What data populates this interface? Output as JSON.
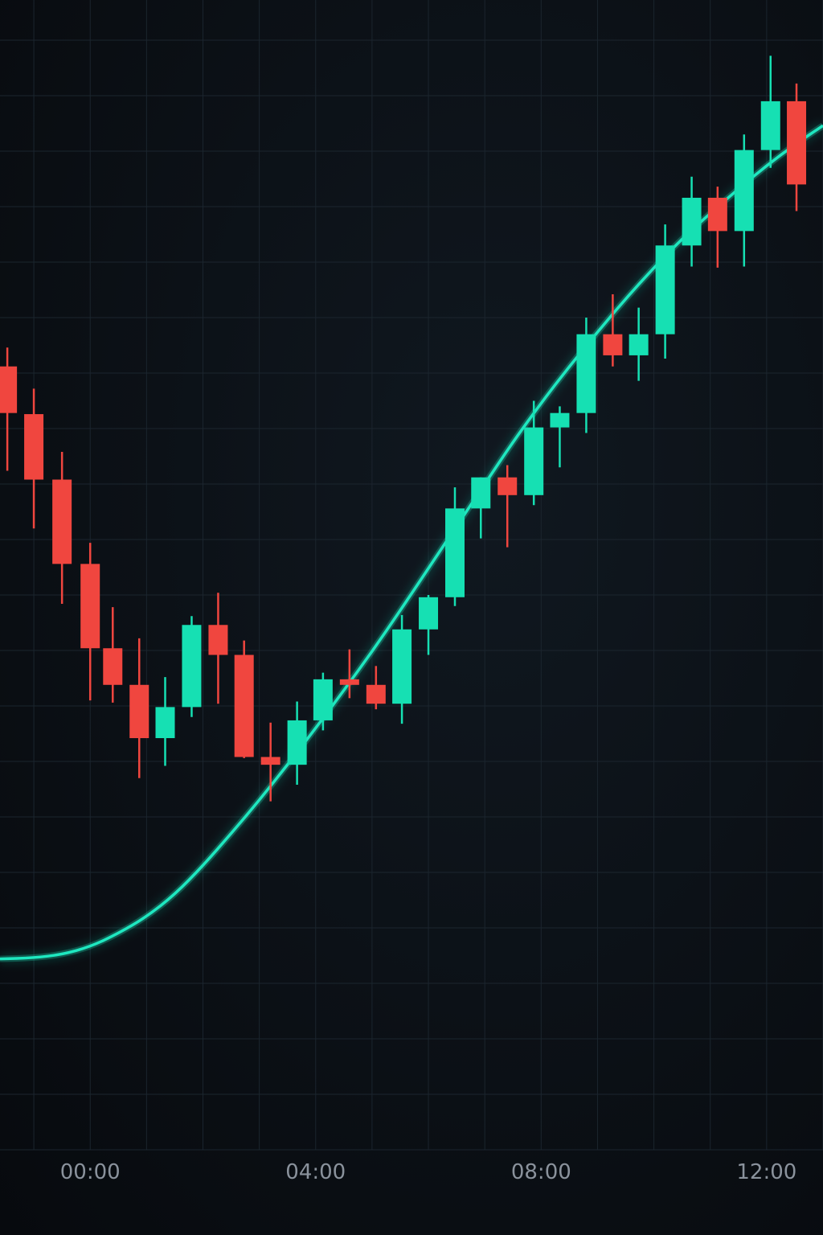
{
  "chart_data": {
    "type": "candlestick",
    "xlabel": "",
    "ylabel": "",
    "x_ticks": [
      "00:00",
      "04:00",
      "08:00",
      "12:00"
    ],
    "x_tick_positions_hours": [
      0,
      4,
      8,
      12
    ],
    "xlim_hours": [
      -1.6,
      13.0
    ],
    "ylim": [
      0,
      100
    ],
    "grid": true,
    "colors": {
      "up": "#16e0b3",
      "down": "#f0463f",
      "trend": "#1ee8c0",
      "grid": "#1b252e",
      "background": "#0b0f14",
      "tick_text": "#8a929c"
    },
    "series": [
      {
        "type": "candlestick",
        "candles": [
          {
            "t": -1.47,
            "open": 70.6,
            "high": 72.3,
            "low": 61.2,
            "close": 66.4
          },
          {
            "t": -1.0,
            "open": 66.3,
            "high": 68.6,
            "low": 56.0,
            "close": 60.4
          },
          {
            "t": -0.5,
            "open": 60.4,
            "high": 62.9,
            "low": 49.2,
            "close": 52.8
          },
          {
            "t": 0.0,
            "open": 52.8,
            "high": 54.7,
            "low": 40.5,
            "close": 45.2
          },
          {
            "t": 0.4,
            "open": 45.2,
            "high": 48.9,
            "low": 40.3,
            "close": 41.9
          },
          {
            "t": 0.87,
            "open": 41.9,
            "high": 46.1,
            "low": 33.5,
            "close": 37.1
          },
          {
            "t": 1.33,
            "open": 37.1,
            "high": 42.6,
            "low": 34.6,
            "close": 39.9
          },
          {
            "t": 1.8,
            "open": 39.9,
            "high": 48.1,
            "low": 39.0,
            "close": 47.3
          },
          {
            "t": 2.27,
            "open": 47.3,
            "high": 50.2,
            "low": 40.2,
            "close": 44.6
          },
          {
            "t": 2.73,
            "open": 44.6,
            "high": 45.9,
            "low": 35.3,
            "close": 35.4
          },
          {
            "t": 3.2,
            "open": 35.4,
            "high": 38.5,
            "low": 31.4,
            "close": 34.7
          },
          {
            "t": 3.67,
            "open": 34.7,
            "high": 40.4,
            "low": 32.9,
            "close": 38.7
          },
          {
            "t": 4.13,
            "open": 38.7,
            "high": 43.0,
            "low": 37.8,
            "close": 42.4
          },
          {
            "t": 4.6,
            "open": 42.4,
            "high": 45.1,
            "low": 40.7,
            "close": 41.9
          },
          {
            "t": 5.07,
            "open": 41.9,
            "high": 43.6,
            "low": 39.7,
            "close": 40.2
          },
          {
            "t": 5.53,
            "open": 40.2,
            "high": 48.2,
            "low": 38.4,
            "close": 46.9
          },
          {
            "t": 6.0,
            "open": 46.9,
            "high": 50.0,
            "low": 44.6,
            "close": 49.8
          },
          {
            "t": 6.47,
            "open": 49.8,
            "high": 59.7,
            "low": 49.0,
            "close": 57.8
          },
          {
            "t": 6.93,
            "open": 57.8,
            "high": 60.6,
            "low": 55.1,
            "close": 60.6
          },
          {
            "t": 7.4,
            "open": 60.6,
            "high": 61.7,
            "low": 54.3,
            "close": 59.0
          },
          {
            "t": 7.87,
            "open": 59.0,
            "high": 67.5,
            "low": 58.1,
            "close": 65.1
          },
          {
            "t": 8.33,
            "open": 65.1,
            "high": 67.0,
            "low": 61.5,
            "close": 66.4
          },
          {
            "t": 8.8,
            "open": 66.4,
            "high": 75.0,
            "low": 64.6,
            "close": 73.5
          },
          {
            "t": 9.27,
            "open": 73.5,
            "high": 77.1,
            "low": 70.6,
            "close": 71.6
          },
          {
            "t": 9.73,
            "open": 71.6,
            "high": 75.9,
            "low": 69.3,
            "close": 73.5
          },
          {
            "t": 10.2,
            "open": 73.5,
            "high": 83.4,
            "low": 71.3,
            "close": 81.5
          },
          {
            "t": 10.67,
            "open": 81.5,
            "high": 87.7,
            "low": 79.6,
            "close": 85.8
          },
          {
            "t": 11.13,
            "open": 85.8,
            "high": 86.8,
            "low": 79.5,
            "close": 82.8
          },
          {
            "t": 11.6,
            "open": 82.8,
            "high": 91.5,
            "low": 79.6,
            "close": 90.1
          },
          {
            "t": 12.07,
            "open": 90.1,
            "high": 98.6,
            "low": 88.5,
            "close": 94.5
          },
          {
            "t": 12.53,
            "open": 94.5,
            "high": 96.1,
            "low": 84.6,
            "close": 87.0
          }
        ]
      },
      {
        "type": "line",
        "points": [
          [
            -1.6,
            17.2
          ],
          [
            -1.0,
            17.3
          ],
          [
            -0.5,
            17.6
          ],
          [
            0.0,
            18.3
          ],
          [
            0.5,
            19.5
          ],
          [
            1.0,
            21.0
          ],
          [
            1.5,
            23.0
          ],
          [
            2.0,
            25.6
          ],
          [
            2.5,
            28.5
          ],
          [
            3.0,
            31.5
          ],
          [
            3.5,
            34.7
          ],
          [
            4.0,
            38.0
          ],
          [
            4.5,
            41.4
          ],
          [
            5.0,
            44.9
          ],
          [
            5.5,
            48.6
          ],
          [
            6.0,
            52.4
          ],
          [
            6.5,
            56.2
          ],
          [
            7.0,
            60.0
          ],
          [
            7.5,
            63.8
          ],
          [
            8.0,
            67.3
          ],
          [
            8.5,
            70.6
          ],
          [
            9.0,
            73.7
          ],
          [
            9.5,
            76.7
          ],
          [
            10.0,
            79.5
          ],
          [
            10.5,
            82.1
          ],
          [
            11.0,
            84.4
          ],
          [
            11.5,
            86.6
          ],
          [
            12.0,
            88.7
          ],
          [
            12.5,
            90.6
          ],
          [
            13.0,
            92.3
          ]
        ]
      }
    ]
  }
}
